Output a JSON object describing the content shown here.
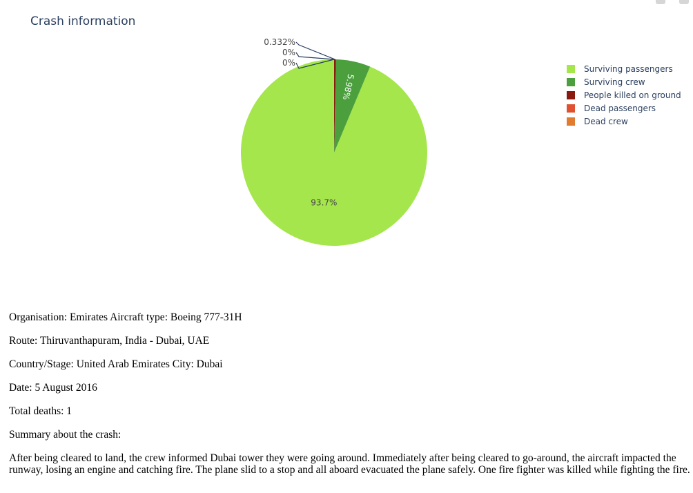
{
  "colors": {
    "surviving_passengers": "#a4e64c",
    "surviving_crew": "#4ba03d",
    "people_killed_on_ground": "#8b1a0e",
    "dead_passengers": "#e0522f",
    "dead_crew": "#e07b2f",
    "title": "#2a3f5f"
  },
  "chart_data": {
    "type": "pie",
    "title": "Crash information",
    "legend_position": "top-right",
    "slices": [
      {
        "label": "Surviving passengers",
        "percent": 93.7,
        "percent_label": "93.7%",
        "color": "#a4e64c"
      },
      {
        "label": "Surviving crew",
        "percent": 5.98,
        "percent_label": "5.98%",
        "color": "#4ba03d"
      },
      {
        "label": "People killed on ground",
        "percent": 0.332,
        "percent_label": "0.332%",
        "color": "#8b1a0e"
      },
      {
        "label": "Dead passengers",
        "percent": 0,
        "percent_label": "0%",
        "color": "#e0522f"
      },
      {
        "label": "Dead crew",
        "percent": 0,
        "percent_label": "0%",
        "color": "#e07b2f"
      }
    ]
  },
  "info": {
    "line1": "Organisation: Emirates Aircraft type: Boeing 777-31H",
    "route": "Route: Thiruvanthapuram, India - Dubai, UAE",
    "country": "Country/Stage: United Arab Emirates City: Dubai",
    "date": "Date: 5 August 2016",
    "deaths": "Total deaths: 1",
    "summary_label": "Summary about the crash:",
    "summary": "After being cleared to land, the crew informed Dubai tower they were going around. Immediately after being cleared to go-around, the aircraft impacted the runway, losing an engine and catching fire. The plane slid to a stop and all aboard evacuated the plane safely. One fire fighter was killed while fighting the fire."
  }
}
